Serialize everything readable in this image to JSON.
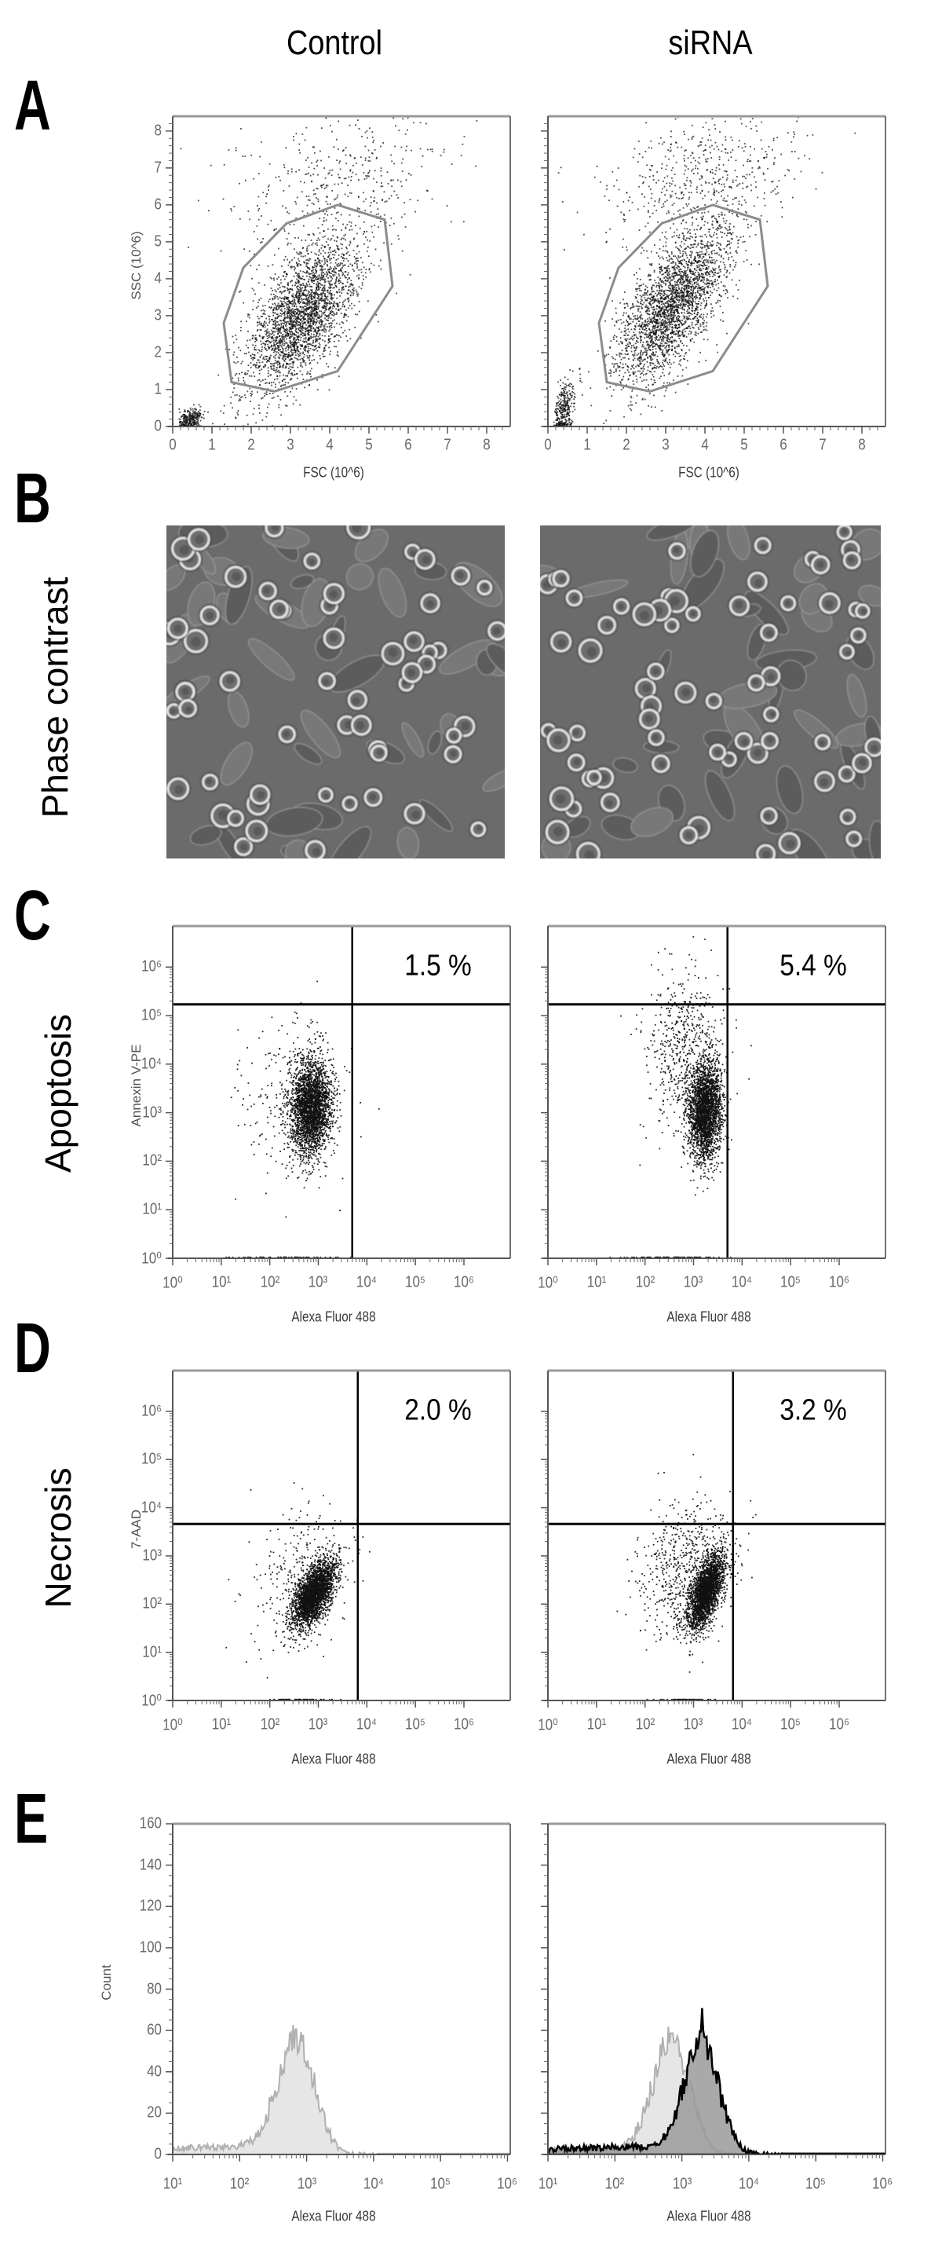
{
  "columns": {
    "control": "Control",
    "sirna": "siRNA"
  },
  "panels": {
    "A": "A",
    "B": "B",
    "C": "C",
    "D": "D",
    "E": "E"
  },
  "row_labels": {
    "B": "Phase contrast",
    "C": "Apoptosis",
    "D": "Necrosis"
  },
  "colors": {
    "dots": "#111111",
    "gate": "#8c8c8c",
    "quadrant": "#000000",
    "hist_control_fill": "#e6e6e6",
    "hist_control_line": "#b0b0b0",
    "hist_sirna_fill": "#9a9a9a",
    "hist_sirna_line": "#000000",
    "micro_bg": "#6b6b6b"
  },
  "chart_data": [
    {
      "panel": "A",
      "condition": "Control",
      "type": "scatter",
      "xscale": "linear",
      "yscale": "linear",
      "xlabel": "FSC (10^6)",
      "ylabel": "SSC (10^6)",
      "xlim": [
        0,
        8.6
      ],
      "ylim": [
        0,
        8.4
      ],
      "xticks": [
        {
          "v": 0,
          "label": "0"
        },
        {
          "v": 1,
          "label": "1"
        },
        {
          "v": 2,
          "label": "2"
        },
        {
          "v": 3,
          "label": "3"
        },
        {
          "v": 4,
          "label": "4"
        },
        {
          "v": 5,
          "label": "5"
        },
        {
          "v": 6,
          "label": "6"
        },
        {
          "v": 7,
          "label": "7"
        },
        {
          "v": 8,
          "label": "8"
        }
      ],
      "yticks": [
        {
          "v": 0,
          "label": "0"
        },
        {
          "v": 1,
          "label": "1"
        },
        {
          "v": 2,
          "label": "2"
        },
        {
          "v": 3,
          "label": "3"
        },
        {
          "v": 4,
          "label": "4"
        },
        {
          "v": 5,
          "label": "5"
        },
        {
          "v": 6,
          "label": "6"
        },
        {
          "v": 7,
          "label": "7"
        },
        {
          "v": 8,
          "label": "8"
        }
      ],
      "gate": [
        [
          1.3,
          2.8
        ],
        [
          1.8,
          4.3
        ],
        [
          2.9,
          5.5
        ],
        [
          4.2,
          6.0
        ],
        [
          5.4,
          5.6
        ],
        [
          5.6,
          3.8
        ],
        [
          4.2,
          1.5
        ],
        [
          2.6,
          0.95
        ],
        [
          1.5,
          1.2
        ]
      ],
      "populations": [
        {
          "name": "main",
          "cx": 3.3,
          "cy": 3.0,
          "sx": 0.7,
          "sy": 1.0,
          "corr": 0.6,
          "n": 2600
        },
        {
          "name": "debris",
          "cx": 0.45,
          "cy": 0.2,
          "sx": 0.15,
          "sy": 0.15,
          "corr": 0.3,
          "n": 260
        },
        {
          "name": "high-scatter",
          "cx": 4.2,
          "cy": 6.4,
          "sx": 1.4,
          "sy": 1.1,
          "corr": 0.3,
          "n": 450
        }
      ]
    },
    {
      "panel": "A",
      "condition": "siRNA",
      "type": "scatter",
      "xscale": "linear",
      "yscale": "linear",
      "xlabel": "FSC (10^6)",
      "xlim": [
        0,
        8.6
      ],
      "ylim": [
        0,
        8.4
      ],
      "xticks": [
        {
          "v": 0,
          "label": "0"
        },
        {
          "v": 1,
          "label": "1"
        },
        {
          "v": 2,
          "label": "2"
        },
        {
          "v": 3,
          "label": "3"
        },
        {
          "v": 4,
          "label": "4"
        },
        {
          "v": 5,
          "label": "5"
        },
        {
          "v": 6,
          "label": "6"
        },
        {
          "v": 7,
          "label": "7"
        },
        {
          "v": 8,
          "label": "8"
        }
      ],
      "yticks": [
        {
          "v": 0
        },
        {
          "v": 1
        },
        {
          "v": 2
        },
        {
          "v": 3
        },
        {
          "v": 4
        },
        {
          "v": 5
        },
        {
          "v": 6
        },
        {
          "v": 7
        },
        {
          "v": 8
        }
      ],
      "gate": [
        [
          1.3,
          2.8
        ],
        [
          1.8,
          4.3
        ],
        [
          2.9,
          5.5
        ],
        [
          4.2,
          6.0
        ],
        [
          5.4,
          5.6
        ],
        [
          5.6,
          3.8
        ],
        [
          4.2,
          1.5
        ],
        [
          2.6,
          0.95
        ],
        [
          1.5,
          1.2
        ]
      ],
      "populations": [
        {
          "name": "main",
          "cx": 3.2,
          "cy": 3.3,
          "sx": 0.7,
          "sy": 1.05,
          "corr": 0.65,
          "n": 2600
        },
        {
          "name": "debris",
          "cx": 0.4,
          "cy": 0.45,
          "sx": 0.13,
          "sy": 0.45,
          "corr": 0.5,
          "n": 330
        },
        {
          "name": "high-scatter",
          "cx": 4.0,
          "cy": 6.8,
          "sx": 1.2,
          "sy": 1.0,
          "corr": 0.3,
          "n": 550
        }
      ]
    },
    {
      "panel": "C",
      "condition": "Control",
      "type": "scatter",
      "xscale": "log10",
      "yscale": "log10",
      "xlabel": "Alexa Fluor 488",
      "ylabel": "Annexin V-PE",
      "xlim": [
        1,
        9000000
      ],
      "ylim": [
        1,
        7000000
      ],
      "xticks": [
        {
          "v": 1,
          "label": "10⁰"
        },
        {
          "v": 10,
          "label": "10¹"
        },
        {
          "v": 100,
          "label": "10²"
        },
        {
          "v": 1000,
          "label": "10³"
        },
        {
          "v": 10000,
          "label": "10⁴"
        },
        {
          "v": 100000,
          "label": "10⁵"
        },
        {
          "v": 1000000,
          "label": "10⁶"
        }
      ],
      "yticks": [
        {
          "v": 1,
          "label": "10⁰"
        },
        {
          "v": 10,
          "label": "10¹"
        },
        {
          "v": 100,
          "label": "10²"
        },
        {
          "v": 1000,
          "label": "10³"
        },
        {
          "v": 10000,
          "label": "10⁴"
        },
        {
          "v": 100000,
          "label": "10⁵"
        },
        {
          "v": 1000000,
          "label": "10⁶"
        }
      ],
      "quadrant": {
        "x": 5000,
        "y": 170000
      },
      "upper_right_percent": "1.5 %",
      "populations": [
        {
          "name": "main",
          "cx": 2.85,
          "cy": 3.1,
          "sx": 0.2,
          "sy": 0.48,
          "corr": 0.1,
          "n": 2600
        },
        {
          "name": "sparse",
          "cx": 2.5,
          "cy": 3.3,
          "sx": 0.5,
          "sy": 0.9,
          "corr": 0.0,
          "n": 320
        },
        {
          "name": "axis-pile",
          "cx": 2.3,
          "cy": 0,
          "sx": 0.5,
          "sy": 0,
          "corr": 0,
          "n": 80
        }
      ]
    },
    {
      "panel": "C",
      "condition": "siRNA",
      "type": "scatter",
      "xscale": "log10",
      "yscale": "log10",
      "xlabel": "Alexa Fluor 488",
      "xlim": [
        1,
        9000000
      ],
      "ylim": [
        1,
        7000000
      ],
      "xticks": [
        {
          "v": 1,
          "label": "10⁰"
        },
        {
          "v": 10,
          "label": "10¹"
        },
        {
          "v": 100,
          "label": "10²"
        },
        {
          "v": 1000,
          "label": "10³"
        },
        {
          "v": 10000,
          "label": "10⁴"
        },
        {
          "v": 100000,
          "label": "10⁵"
        },
        {
          "v": 1000000,
          "label": "10⁶"
        }
      ],
      "yticks": [
        {
          "v": 1
        },
        {
          "v": 10
        },
        {
          "v": 100
        },
        {
          "v": 1000
        },
        {
          "v": 10000
        },
        {
          "v": 100000
        },
        {
          "v": 1000000
        }
      ],
      "quadrant": {
        "x": 5000,
        "y": 170000
      },
      "upper_right_percent": "5.4 %",
      "populations": [
        {
          "name": "main",
          "cx": 3.25,
          "cy": 3.0,
          "sx": 0.17,
          "sy": 0.5,
          "corr": 0.1,
          "n": 2500
        },
        {
          "name": "sparse",
          "cx": 2.85,
          "cy": 4.2,
          "sx": 0.4,
          "sy": 0.9,
          "corr": 0.0,
          "n": 600
        },
        {
          "name": "axis-pile",
          "cx": 2.6,
          "cy": 0,
          "sx": 0.5,
          "sy": 0,
          "corr": 0,
          "n": 90
        }
      ]
    },
    {
      "panel": "D",
      "condition": "Control",
      "type": "scatter",
      "xscale": "log10",
      "yscale": "log10",
      "xlabel": "Alexa Fluor 488",
      "ylabel": "7-AAD",
      "xlim": [
        1,
        9000000
      ],
      "ylim": [
        1,
        7000000
      ],
      "xticks": [
        {
          "v": 1,
          "label": "10⁰"
        },
        {
          "v": 10,
          "label": "10¹"
        },
        {
          "v": 100,
          "label": "10²"
        },
        {
          "v": 1000,
          "label": "10³"
        },
        {
          "v": 10000,
          "label": "10⁴"
        },
        {
          "v": 100000,
          "label": "10⁵"
        },
        {
          "v": 1000000,
          "label": "10⁶"
        }
      ],
      "yticks": [
        {
          "v": 1,
          "label": "10⁰"
        },
        {
          "v": 10,
          "label": "10¹"
        },
        {
          "v": 100,
          "label": "10²"
        },
        {
          "v": 1000,
          "label": "10³"
        },
        {
          "v": 10000,
          "label": "10⁴"
        },
        {
          "v": 100000,
          "label": "10⁵"
        },
        {
          "v": 1000000,
          "label": "10⁶"
        }
      ],
      "quadrant": {
        "x": 6500,
        "y": 4600
      },
      "upper_right_percent": "2.0 %",
      "populations": [
        {
          "name": "main",
          "cx": 2.9,
          "cy": 2.2,
          "sx": 0.22,
          "sy": 0.35,
          "corr": 0.6,
          "n": 2600
        },
        {
          "name": "sparse",
          "cx": 2.6,
          "cy": 2.5,
          "sx": 0.5,
          "sy": 0.75,
          "corr": 0.2,
          "n": 330
        },
        {
          "name": "axis-pile",
          "cx": 2.6,
          "cy": 0,
          "sx": 0.3,
          "sy": 0,
          "corr": 0,
          "n": 60
        }
      ]
    },
    {
      "panel": "D",
      "condition": "siRNA",
      "type": "scatter",
      "xscale": "log10",
      "yscale": "log10",
      "xlabel": "Alexa Fluor 488",
      "xlim": [
        1,
        9000000
      ],
      "ylim": [
        1,
        7000000
      ],
      "xticks": [
        {
          "v": 1,
          "label": "10⁰"
        },
        {
          "v": 10,
          "label": "10¹"
        },
        {
          "v": 100,
          "label": "10²"
        },
        {
          "v": 1000,
          "label": "10³"
        },
        {
          "v": 10000,
          "label": "10⁴"
        },
        {
          "v": 100000,
          "label": "10⁵"
        },
        {
          "v": 1000000,
          "label": "10⁶"
        }
      ],
      "yticks": [
        {
          "v": 1
        },
        {
          "v": 10
        },
        {
          "v": 100
        },
        {
          "v": 1000
        },
        {
          "v": 10000
        },
        {
          "v": 100000
        },
        {
          "v": 1000000
        }
      ],
      "quadrant": {
        "x": 6500,
        "y": 4600
      },
      "upper_right_percent": "3.2 %",
      "populations": [
        {
          "name": "main",
          "cx": 3.25,
          "cy": 2.25,
          "sx": 0.18,
          "sy": 0.38,
          "corr": 0.6,
          "n": 2500
        },
        {
          "name": "sparse",
          "cx": 2.9,
          "cy": 2.7,
          "sx": 0.5,
          "sy": 0.7,
          "corr": 0.2,
          "n": 650
        },
        {
          "name": "axis-pile",
          "cx": 2.9,
          "cy": 0,
          "sx": 0.35,
          "sy": 0,
          "corr": 0,
          "n": 60
        }
      ]
    },
    {
      "panel": "E",
      "condition": "Control",
      "type": "area",
      "xscale": "log10",
      "yscale": "linear",
      "xlabel": "Alexa Fluor 488",
      "ylabel": "Count",
      "xlim": [
        10,
        1100000
      ],
      "ylim": [
        0,
        160
      ],
      "xticks": [
        {
          "v": 10,
          "label": "10¹"
        },
        {
          "v": 100,
          "label": "10²"
        },
        {
          "v": 1000,
          "label": "10³"
        },
        {
          "v": 10000,
          "label": "10⁴"
        },
        {
          "v": 100000,
          "label": "10⁵"
        },
        {
          "v": 1000000,
          "label": "10⁶"
        }
      ],
      "yticks": [
        {
          "v": 0,
          "label": "0"
        },
        {
          "v": 20,
          "label": "20"
        },
        {
          "v": 40,
          "label": "40"
        },
        {
          "v": 60,
          "label": "60"
        },
        {
          "v": 80,
          "label": "80"
        },
        {
          "v": 100,
          "label": "100"
        },
        {
          "v": 120,
          "label": "120"
        },
        {
          "v": 140,
          "label": "140"
        },
        {
          "v": 160,
          "label": "160"
        }
      ],
      "series": [
        {
          "name": "control",
          "style": "light",
          "peak_at": 700,
          "peak_count": 55,
          "max_count": 64,
          "spread_decades": 0.27,
          "baseline": 3
        }
      ]
    },
    {
      "panel": "E",
      "condition": "siRNA",
      "type": "area",
      "xscale": "log10",
      "yscale": "linear",
      "xlabel": "Alexa Fluor 488",
      "xlim": [
        10,
        1100000
      ],
      "ylim": [
        0,
        160
      ],
      "xticks": [
        {
          "v": 10,
          "label": "10¹"
        },
        {
          "v": 100,
          "label": "10²"
        },
        {
          "v": 1000,
          "label": "10³"
        },
        {
          "v": 10000,
          "label": "10⁴"
        },
        {
          "v": 100000,
          "label": "10⁵"
        },
        {
          "v": 1000000,
          "label": "10⁶"
        }
      ],
      "yticks": [
        {
          "v": 0
        },
        {
          "v": 20
        },
        {
          "v": 40
        },
        {
          "v": 60
        },
        {
          "v": 80
        },
        {
          "v": 100
        },
        {
          "v": 120
        },
        {
          "v": 140
        },
        {
          "v": 160
        }
      ],
      "series": [
        {
          "name": "control",
          "style": "light",
          "peak_at": 700,
          "peak_count": 55,
          "max_count": 64,
          "spread_decades": 0.27,
          "baseline": 2
        },
        {
          "name": "siRNA",
          "style": "dark",
          "peak_at": 2000,
          "peak_count": 55,
          "max_count": 73,
          "spread_decades": 0.25,
          "baseline": 3
        }
      ]
    }
  ]
}
